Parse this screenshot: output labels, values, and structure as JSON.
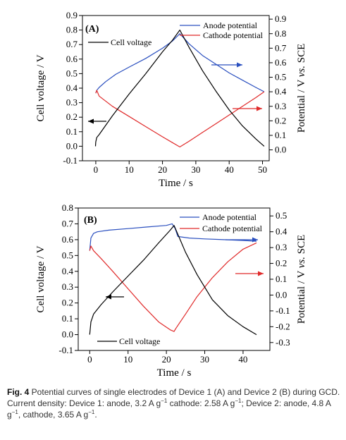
{
  "chart_data": [
    {
      "type": "line",
      "panel_label": "(A)",
      "xlabel": "Time / s",
      "ylabel": "Cell voltage / V",
      "y2label_a": "Potential / V ",
      "y2label_b": "vs.",
      "y2label_c": " SCE",
      "xlim": [
        -4,
        52
      ],
      "ylim": [
        -0.1,
        0.9
      ],
      "y2lim": [
        -0.075,
        0.925
      ],
      "xticks": [
        "0",
        "10",
        "20",
        "30",
        "40",
        "50"
      ],
      "xtick_values": [
        0,
        10,
        20,
        30,
        40,
        50
      ],
      "yticks": [
        "-0.1",
        "0.0",
        "0.1",
        "0.2",
        "0.3",
        "0.4",
        "0.5",
        "0.6",
        "0.7",
        "0.8",
        "0.9"
      ],
      "ytick_values": [
        -0.1,
        0,
        0.1,
        0.2,
        0.3,
        0.4,
        0.5,
        0.6,
        0.7,
        0.8,
        0.9
      ],
      "y2ticks": [
        "0.0",
        "0.1",
        "0.2",
        "0.3",
        "0.4",
        "0.5",
        "0.6",
        "0.7",
        "0.8",
        "0.9"
      ],
      "y2tick_values": [
        0,
        0.1,
        0.2,
        0.3,
        0.4,
        0.5,
        0.6,
        0.7,
        0.8,
        0.9
      ],
      "series": [
        {
          "name": "Anode potential",
          "color": "#2a4fbf",
          "axis": "right",
          "x": [
            0,
            0.3,
            1,
            3,
            6,
            10,
            15,
            20,
            23,
            25.2,
            28,
            32,
            36,
            40,
            44,
            48,
            50.5
          ],
          "y": [
            0.39,
            0.41,
            0.43,
            0.47,
            0.52,
            0.57,
            0.63,
            0.7,
            0.75,
            0.8,
            0.73,
            0.65,
            0.59,
            0.53,
            0.48,
            0.43,
            0.4
          ]
        },
        {
          "name": "Cathode potential",
          "color": "#e02a2a",
          "axis": "right",
          "x": [
            0,
            0.3,
            1,
            5,
            10,
            15,
            20,
            23,
            25.2,
            28,
            32,
            36,
            40,
            44,
            48,
            50.5
          ],
          "y": [
            0.39,
            0.41,
            0.37,
            0.3,
            0.23,
            0.16,
            0.09,
            0.05,
            0.02,
            0.06,
            0.12,
            0.18,
            0.24,
            0.3,
            0.36,
            0.4
          ]
        },
        {
          "name": "Cell voltage",
          "color": "#000000",
          "axis": "left",
          "x": [
            -0.1,
            0,
            0.3,
            1,
            5,
            10,
            15,
            20,
            23,
            25.2,
            28,
            32,
            36,
            40,
            44,
            48,
            50.5
          ],
          "y": [
            0.0,
            0.03,
            0.06,
            0.08,
            0.21,
            0.36,
            0.5,
            0.65,
            0.73,
            0.8,
            0.68,
            0.52,
            0.38,
            0.25,
            0.14,
            0.05,
            0.0
          ]
        }
      ],
      "legend": [
        "Anode potential",
        "Cathode potential",
        "Cell voltage"
      ],
      "annotations": [
        {
          "kind": "arrow",
          "direction": "left",
          "color": "#000000"
        },
        {
          "kind": "arrow",
          "direction": "right",
          "color": "#2a4fbf"
        },
        {
          "kind": "arrow",
          "direction": "right",
          "color": "#e02a2a"
        }
      ]
    },
    {
      "type": "line",
      "panel_label": "(B)",
      "xlabel": "Time / s",
      "ylabel": "Cell voltage / V",
      "y2label_a": "Potential / V ",
      "y2label_b": "vs.",
      "y2label_c": " SCE",
      "xlim": [
        -3,
        47
      ],
      "ylim": [
        -0.1,
        0.8
      ],
      "y2lim": [
        -0.35,
        0.55
      ],
      "xticks": [
        "0",
        "10",
        "20",
        "30",
        "40"
      ],
      "xtick_values": [
        0,
        10,
        20,
        30,
        40
      ],
      "yticks": [
        "-0.1",
        "0.0",
        "0.1",
        "0.2",
        "0.3",
        "0.4",
        "0.5",
        "0.6",
        "0.7",
        "0.8"
      ],
      "ytick_values": [
        -0.1,
        0,
        0.1,
        0.2,
        0.3,
        0.4,
        0.5,
        0.6,
        0.7,
        0.8
      ],
      "y2ticks": [
        "-0.3",
        "-0.2",
        "-0.1",
        "0.0",
        "0.1",
        "0.2",
        "0.3",
        "0.4",
        "0.5"
      ],
      "y2tick_values": [
        -0.3,
        -0.2,
        -0.1,
        0,
        0.1,
        0.2,
        0.3,
        0.4,
        0.5
      ],
      "series": [
        {
          "name": "Anode potential",
          "color": "#2a4fbf",
          "axis": "right",
          "x": [
            0,
            0.3,
            1,
            2,
            5,
            10,
            15,
            20,
            21.5,
            22.3,
            23,
            26,
            30,
            35,
            40,
            43.5
          ],
          "y": [
            0.28,
            0.36,
            0.39,
            0.4,
            0.41,
            0.42,
            0.43,
            0.44,
            0.45,
            0.42,
            0.37,
            0.36,
            0.355,
            0.35,
            0.345,
            0.34
          ]
        },
        {
          "name": "Cathode potential",
          "color": "#e02a2a",
          "axis": "right",
          "x": [
            0,
            0.3,
            1,
            3,
            6,
            10,
            14,
            18,
            21,
            22,
            22.5,
            25,
            28,
            32,
            36,
            40,
            43.5
          ],
          "y": [
            0.28,
            0.31,
            0.28,
            0.23,
            0.15,
            0.04,
            -0.07,
            -0.17,
            -0.22,
            -0.23,
            -0.21,
            -0.12,
            -0.01,
            0.11,
            0.21,
            0.29,
            0.33
          ]
        },
        {
          "name": "Cell voltage",
          "color": "#000000",
          "axis": "left",
          "x": [
            0,
            0.3,
            1,
            3,
            6,
            10,
            14,
            18,
            21,
            22,
            25,
            28,
            32,
            36,
            40,
            43.5
          ],
          "y": [
            0.0,
            0.08,
            0.13,
            0.19,
            0.27,
            0.37,
            0.47,
            0.58,
            0.66,
            0.69,
            0.52,
            0.38,
            0.22,
            0.12,
            0.05,
            0.0
          ]
        }
      ],
      "legend": [
        "Anode potential",
        "Cathode potential",
        "Cell voltage"
      ],
      "annotations": [
        {
          "kind": "arrow",
          "direction": "left",
          "color": "#000000"
        },
        {
          "kind": "arrow",
          "direction": "right",
          "color": "#2a4fbf"
        },
        {
          "kind": "arrow",
          "direction": "right",
          "color": "#e02a2a"
        }
      ]
    }
  ],
  "caption": {
    "label": "Fig. 4",
    "text_1": "  Potential curves of single electrodes of Device 1 (A) and Device 2 (B) during GCD. Current density: Device 1: anode, 3.2 A g",
    "sup_1": "−1",
    "text_2": " cathode: 2.58 A g",
    "sup_2": "−1",
    "text_3": "; Device 2: anode, 4.8 A g",
    "sup_3": "−1",
    "text_4": ", cathode, 3.65 A g",
    "sup_4": "−1",
    "text_5": "."
  }
}
